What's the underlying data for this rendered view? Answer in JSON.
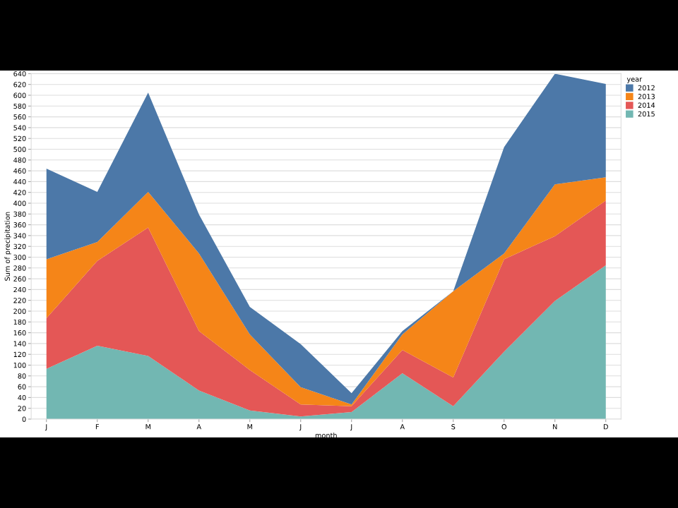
{
  "chart_data": {
    "type": "area",
    "stacked": true,
    "xlabel": "month",
    "ylabel": "Sum of precipitation",
    "legend_title": "year",
    "legend": "top right",
    "grid": "y",
    "categories": [
      "J",
      "F",
      "M",
      "A",
      "M",
      "J",
      "J",
      "A",
      "S",
      "O",
      "N",
      "D"
    ],
    "ylim": [
      0,
      640
    ],
    "yticks": [
      0,
      20,
      40,
      60,
      80,
      100,
      120,
      140,
      160,
      180,
      200,
      220,
      240,
      260,
      280,
      300,
      320,
      340,
      360,
      380,
      400,
      420,
      440,
      460,
      480,
      500,
      520,
      540,
      560,
      580,
      600,
      620,
      640
    ],
    "series": [
      {
        "name": "2015",
        "color": "#72b7b2",
        "values": [
          93,
          136,
          117,
          53,
          16,
          5,
          13,
          85,
          24,
          125,
          219,
          285
        ]
      },
      {
        "name": "2014",
        "color": "#e45756",
        "values": [
          94,
          157,
          238,
          110,
          75,
          22,
          11,
          43,
          53,
          171,
          120,
          120
        ]
      },
      {
        "name": "2013",
        "color": "#f58518",
        "values": [
          109,
          35,
          66,
          144,
          66,
          32,
          3,
          29,
          160,
          11,
          96,
          43
        ]
      },
      {
        "name": "2012",
        "color": "#4c78a8",
        "values": [
          168,
          93,
          184,
          72,
          51,
          80,
          21,
          6,
          0,
          197,
          205,
          173
        ]
      }
    ]
  }
}
